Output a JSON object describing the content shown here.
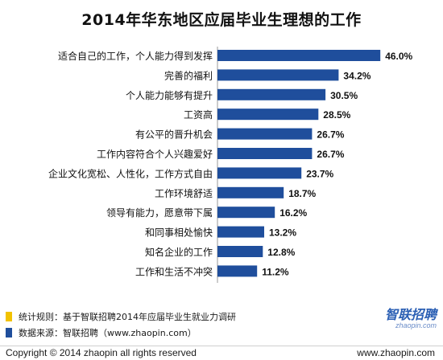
{
  "chart_data": {
    "type": "bar",
    "orientation": "horizontal",
    "title": "2014年华东地区应届毕业生理想的工作",
    "categories": [
      "适合自己的工作，个人能力得到发挥",
      "完善的福利",
      "个人能力能够有提升",
      "工资高",
      "有公平的晋升机会",
      "工作内容符合个人兴趣爱好",
      "企业文化宽松、人性化，工作方式自由",
      "工作环境舒适",
      "领导有能力，愿意带下属",
      "和同事相处愉快",
      "知名企业的工作",
      "工作和生活不冲突"
    ],
    "values": [
      46.0,
      34.2,
      30.5,
      28.5,
      26.7,
      26.7,
      23.7,
      18.7,
      16.2,
      13.2,
      12.8,
      11.2
    ],
    "value_labels": [
      "46.0%",
      "34.2%",
      "30.5%",
      "28.5%",
      "26.7%",
      "26.7%",
      "23.7%",
      "18.7%",
      "16.2%",
      "13.2%",
      "12.8%",
      "11.2%"
    ],
    "unit": "%",
    "xlim": [
      0,
      50
    ],
    "grid": false,
    "bar_color": "#1f4e9c"
  },
  "notes": [
    {
      "text": "统计规则：基于智联招聘2014年应届毕业生就业力调研",
      "color": "#f2c200"
    },
    {
      "text": "数据来源：智联招聘（www.zhaopin.com）",
      "color": "#1f4e9c"
    }
  ],
  "logo": {
    "text": "智联招聘",
    "sub": "zhaopin.com"
  },
  "footer": {
    "copyright": "Copyright  ©  2014 zhaopin all rights reserved",
    "url": "www.zhaopin.com"
  }
}
